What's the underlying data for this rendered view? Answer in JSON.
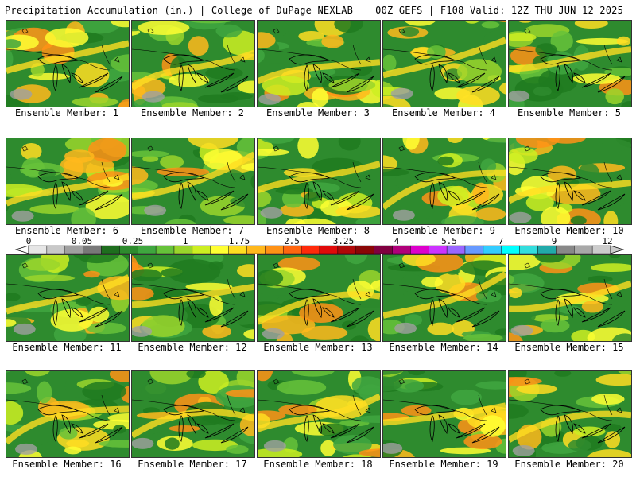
{
  "header": {
    "left": "Precipitation Accumulation (in.) | College of DuPage NEXLAB",
    "right": "00Z GEFS | F108 Valid: 12Z THU JUN 12 2025"
  },
  "members": [
    {
      "label": "Ensemble Member: 1"
    },
    {
      "label": "Ensemble Member: 2"
    },
    {
      "label": "Ensemble Member: 3"
    },
    {
      "label": "Ensemble Member: 4"
    },
    {
      "label": "Ensemble Member: 5"
    },
    {
      "label": "Ensemble Member: 6"
    },
    {
      "label": "Ensemble Member: 7"
    },
    {
      "label": "Ensemble Member: 8"
    },
    {
      "label": "Ensemble Member: 9"
    },
    {
      "label": "Ensemble Member: 10"
    },
    {
      "label": "Ensemble Member: 11"
    },
    {
      "label": "Ensemble Member: 12"
    },
    {
      "label": "Ensemble Member: 13"
    },
    {
      "label": "Ensemble Member: 14"
    },
    {
      "label": "Ensemble Member: 15"
    },
    {
      "label": "Ensemble Member: 16"
    },
    {
      "label": "Ensemble Member: 17"
    },
    {
      "label": "Ensemble Member: 18"
    },
    {
      "label": "Ensemble Member: 19"
    },
    {
      "label": "Ensemble Member: 20"
    }
  ],
  "colorbar": {
    "tick_labels": [
      "0",
      "0.05",
      "0.25",
      "1",
      "1.75",
      "2.5",
      "3.25",
      "4",
      "5.5",
      "7",
      "9",
      "12"
    ],
    "colors": [
      "#e6e6e6",
      "#c8c8c8",
      "#a0a0a0",
      "#787878",
      "#1e6e1e",
      "#2e8b2e",
      "#3fa63f",
      "#66c23a",
      "#9ad52c",
      "#ccee22",
      "#ffff33",
      "#ffdd22",
      "#ffb81c",
      "#ff9216",
      "#ff6610",
      "#ff2a0a",
      "#e00a0a",
      "#b00808",
      "#8a0606",
      "#800040",
      "#b0007a",
      "#dd00cc",
      "#cc33ff",
      "#9966ff",
      "#6699ff",
      "#33ccff",
      "#00ffff",
      "#33dddd",
      "#22aaaa",
      "#888888",
      "#a8a8a8",
      "#cccccc"
    ]
  }
}
